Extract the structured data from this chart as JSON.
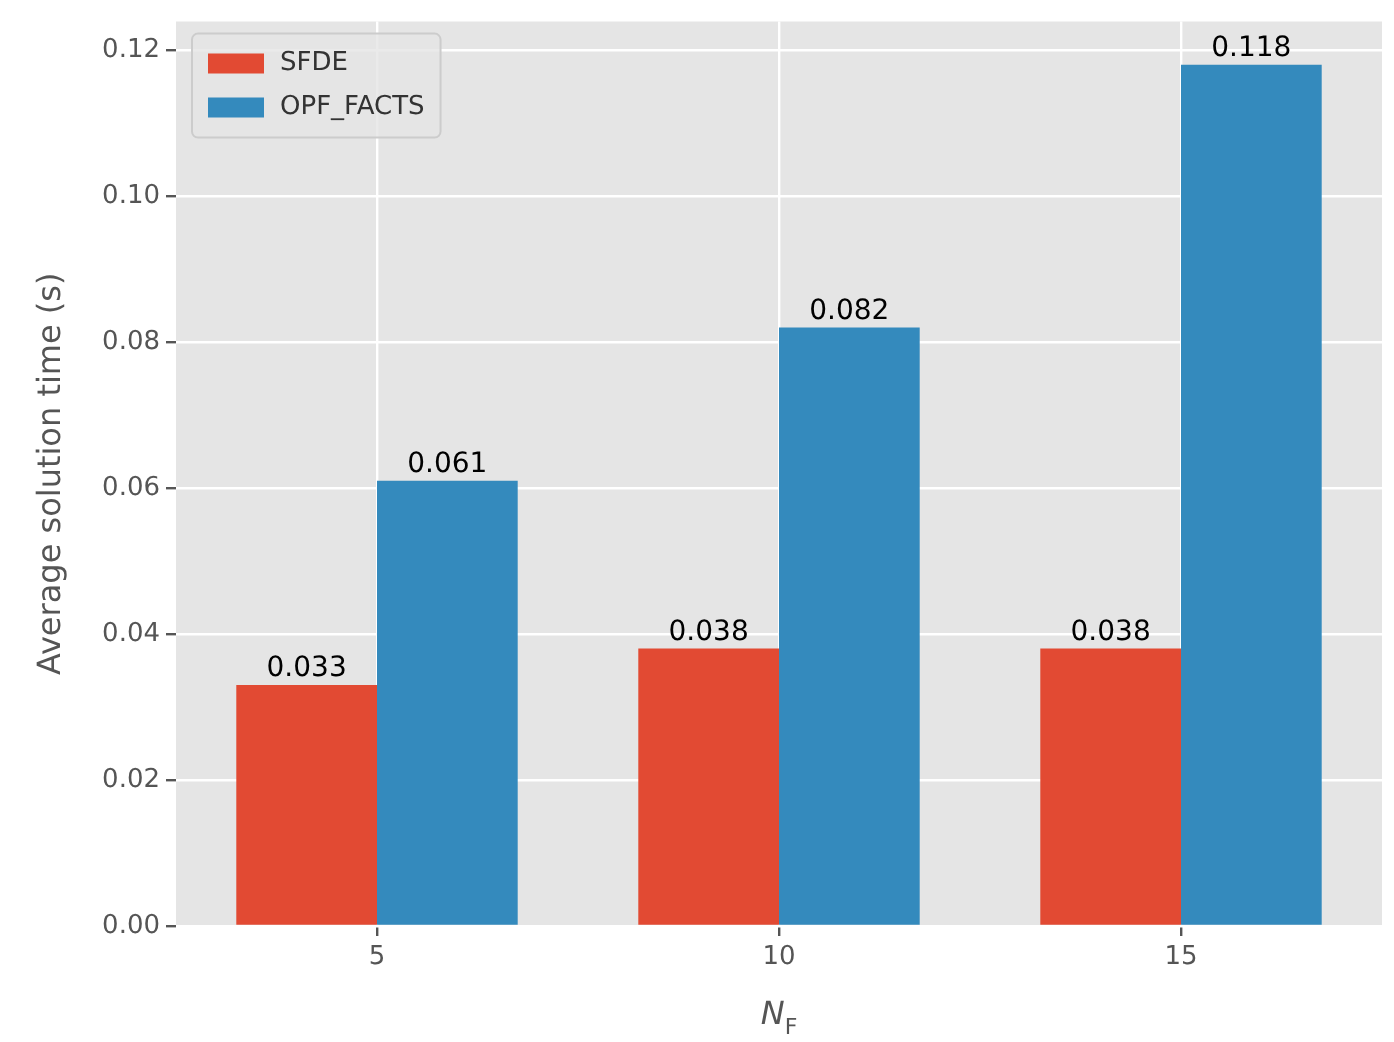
{
  "chart_data": {
    "type": "bar",
    "xlabel": "N$_{F}$",
    "ylabel": "Average solution time (s)",
    "categories": [
      "5",
      "10",
      "15"
    ],
    "series": [
      {
        "name": "SFDE",
        "color": "#e24a33",
        "values": [
          0.033,
          0.038,
          0.038
        ]
      },
      {
        "name": "OPF_FACTS",
        "color": "#348abd",
        "values": [
          0.061,
          0.082,
          0.118
        ]
      }
    ],
    "ylim": [
      0,
      0.1239
    ],
    "yticks": [
      {
        "value": 0,
        "label": "0.00"
      },
      {
        "value": 0.02,
        "label": "0.02"
      },
      {
        "value": 0.04,
        "label": "0.04"
      },
      {
        "value": 0.06,
        "label": "0.06"
      },
      {
        "value": 0.08,
        "label": "0.08"
      },
      {
        "value": 0.1,
        "label": "0.10"
      },
      {
        "value": 0.12,
        "label": "0.12"
      }
    ],
    "grid": true,
    "legend": "top left",
    "data_labels": true
  }
}
